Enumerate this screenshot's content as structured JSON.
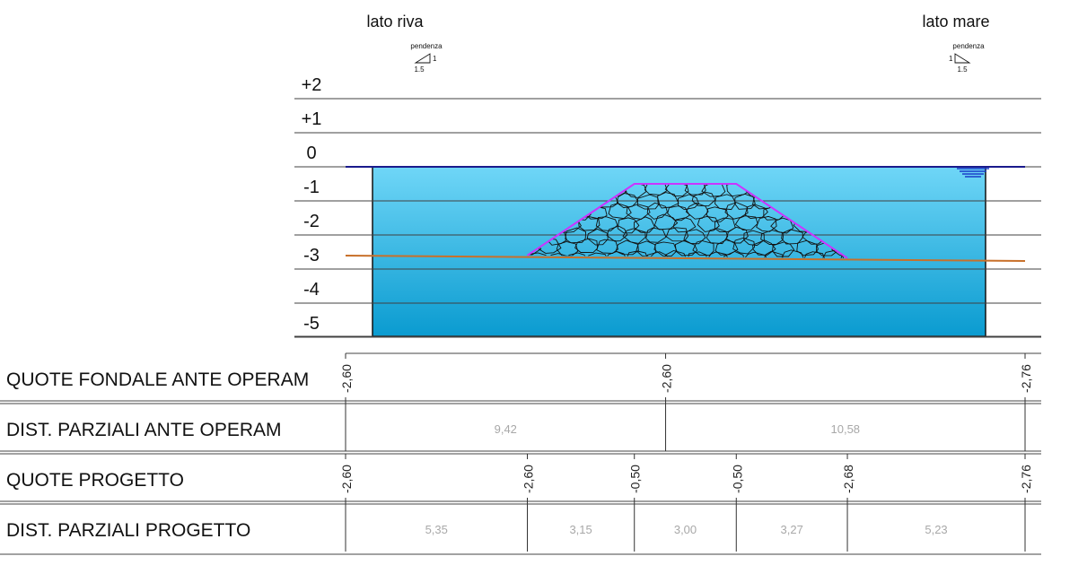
{
  "header": {
    "left_label": "lato riva",
    "right_label": "lato mare",
    "left_slope": {
      "title": "pendenza",
      "rise": "1",
      "run": "1.5"
    },
    "right_slope": {
      "title": "pendenza",
      "rise": "1",
      "run": "1.5"
    }
  },
  "levels": [
    {
      "value": 2,
      "label": "+2"
    },
    {
      "value": 1,
      "label": "+1"
    },
    {
      "value": 0,
      "label": "0"
    },
    {
      "value": -1,
      "label": "-1"
    },
    {
      "value": -2,
      "label": "-2"
    },
    {
      "value": -3,
      "label": "-3"
    },
    {
      "value": -4,
      "label": "-4"
    },
    {
      "value": -5,
      "label": "-5"
    }
  ],
  "colors": {
    "water_top": "#6fd6f7",
    "water_bottom": "#0a9bd0",
    "seabed": "#c8702a",
    "embankment_outline": "#cc33ff",
    "water_surface": "#1a1a8c",
    "grid": "#404040"
  },
  "table": {
    "rows": [
      {
        "label": "QUOTE FONDALE ANTE OPERAM",
        "type": "quote"
      },
      {
        "label": "DIST. PARZIALI ANTE OPERAM",
        "type": "dist"
      },
      {
        "label": "QUOTE PROGETTO",
        "type": "quote"
      },
      {
        "label": "DIST. PARZIALI PROGETTO",
        "type": "dist"
      }
    ],
    "quote_ante": [
      {
        "dist": 0,
        "label": "-2,60"
      },
      {
        "dist": 9.42,
        "label": "-2,60"
      },
      {
        "dist": 20.0,
        "label": "-2,76"
      }
    ],
    "dist_ante": [
      "9,42",
      "10,58"
    ],
    "quote_progetto": [
      {
        "dist": 0,
        "label": "-2,60"
      },
      {
        "dist": 5.35,
        "label": "-2,60"
      },
      {
        "dist": 8.5,
        "label": "-0,50"
      },
      {
        "dist": 11.5,
        "label": "-0,50"
      },
      {
        "dist": 14.77,
        "label": "-2,68"
      },
      {
        "dist": 20.0,
        "label": "-2,76"
      }
    ],
    "dist_progetto": [
      "5,35",
      "3,15",
      "3,00",
      "3,27",
      "5,23"
    ]
  }
}
